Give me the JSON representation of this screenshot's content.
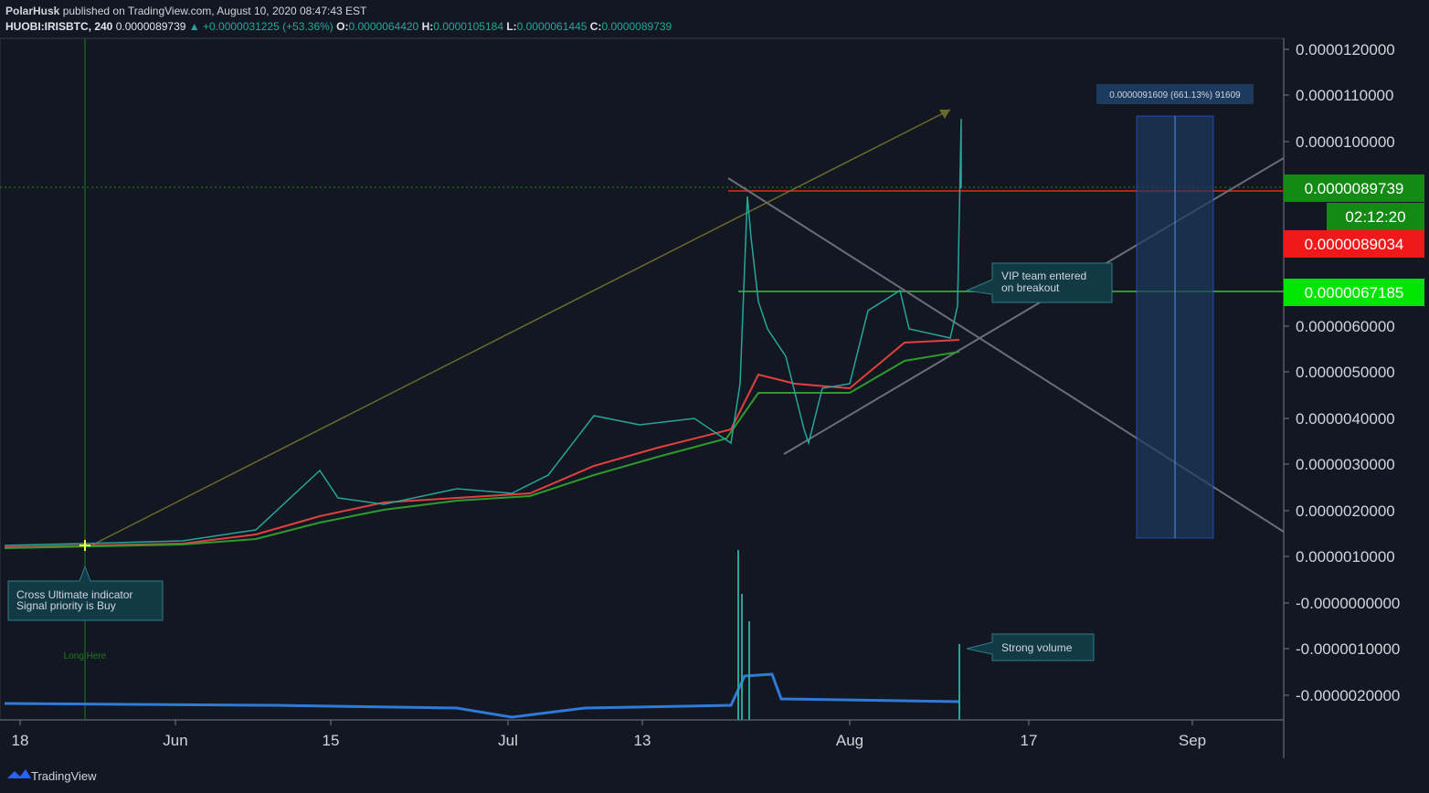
{
  "header": {
    "author": "PolarHusk",
    "published": "published on TradingView.com, August 10, 2020 08:47:43 EST"
  },
  "symbol_line": {
    "symbol": "HUOBI:IRISBTC, 240",
    "last": "0.0000089739",
    "change": "▲ +0.0000031225 (+53.36%)",
    "o_label": "O:",
    "o": "0.0000064420",
    "h_label": "H:",
    "h": "0.0000105184",
    "l_label": "L:",
    "l": "0.0000061445",
    "c_label": "C:",
    "c": "0.0000089739"
  },
  "price_axis": [
    "0.0000120000",
    "0.0000110000",
    "0.0000100000",
    "0.0000060000",
    "0.0000050000",
    "0.0000040000",
    "0.0000030000",
    "0.0000020000",
    "0.0000010000",
    "-0.0000000000",
    "-0.0000010000",
    "-0.0000020000"
  ],
  "price_badges": [
    {
      "label": "0.0000089739",
      "color": "#138a13"
    },
    {
      "label": "02:12:20",
      "color": "#138a13"
    },
    {
      "label": "0.0000089034",
      "color": "#f01818"
    },
    {
      "label": "0.0000067185",
      "color": "#00e600"
    }
  ],
  "time_axis": [
    "18",
    "Jun",
    "15",
    "Jul",
    "13",
    "Aug",
    "17",
    "Sep"
  ],
  "annotations": {
    "vip": [
      "VIP team entered",
      "on breakout"
    ],
    "cross": [
      "Cross Ultimate indicator",
      "Signal priority is Buy"
    ],
    "volume": "Strong volume",
    "long": "Long Here",
    "measure": "0.0000091609 (661.13%) 91609"
  },
  "footer": "TradingView"
}
